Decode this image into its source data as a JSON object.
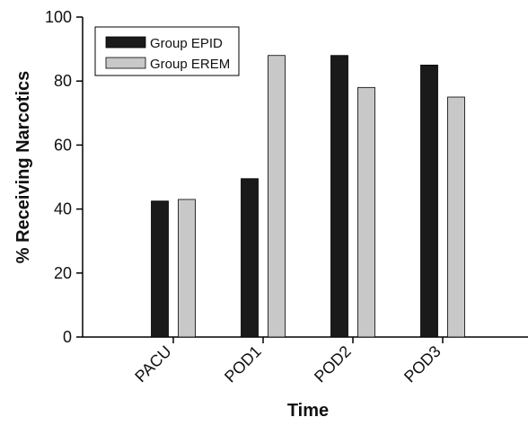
{
  "chart_data": {
    "type": "bar",
    "xlabel": "Time",
    "ylabel": "% Receiving Narcotics",
    "categories": [
      "PACU",
      "POD1",
      "POD2",
      "POD3"
    ],
    "series": [
      {
        "name": "Group EPID",
        "values": [
          42.5,
          49.5,
          88,
          85
        ],
        "color": "#1a1a1a"
      },
      {
        "name": "Group EREM",
        "values": [
          43,
          88,
          78,
          75
        ],
        "color": "#c8c8c8"
      }
    ],
    "ylim": [
      0,
      100
    ],
    "yticks": [
      0,
      20,
      40,
      60,
      80,
      100
    ],
    "grid": false,
    "legend_position": "top-left"
  }
}
